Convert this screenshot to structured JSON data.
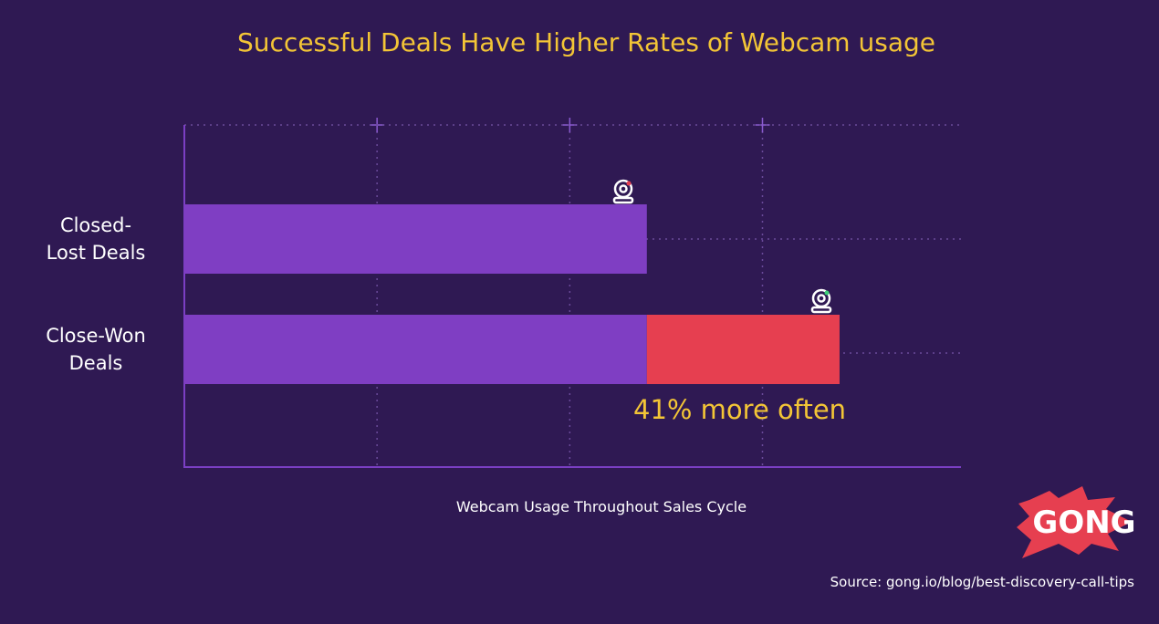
{
  "chart_data": {
    "type": "stacked-bar-horizontal",
    "title": "Successful Deals Have Higher Rates of Webcam usage",
    "x_label": "Webcam Usage Throughout Sales Cycle",
    "categories": [
      "Closed-Lost Deals",
      "Close-Won Deals"
    ],
    "series": [
      {
        "color": "#7f3ec3",
        "values": [
          2.4,
          2.4
        ]
      },
      {
        "color": "#e63f50",
        "values": [
          null,
          1.0
        ]
      }
    ],
    "xlim": [
      0,
      4.03
    ],
    "xticks": [
      1,
      2,
      3
    ],
    "grid": true,
    "annotation": "41% more often",
    "logo": "GONG",
    "source": "Source: gong.io/blog/best-discovery-call-tips"
  }
}
